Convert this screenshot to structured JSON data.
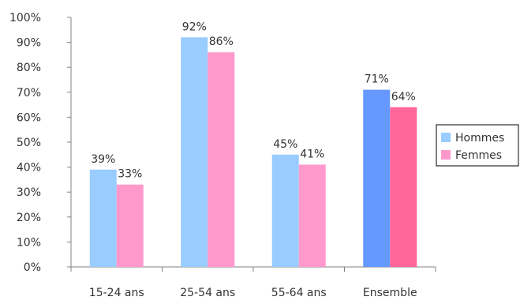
{
  "chart_data": {
    "type": "bar",
    "categories": [
      "15-24 ans",
      "25-54 ans",
      "55-64 ans",
      "Ensemble"
    ],
    "series": [
      {
        "name": "Hommes",
        "values": [
          39,
          92,
          45,
          71
        ],
        "labels": [
          "39%",
          "92%",
          "45%",
          "71%"
        ]
      },
      {
        "name": "Femmes",
        "values": [
          33,
          86,
          41,
          64
        ],
        "labels": [
          "33%",
          "86%",
          "41%",
          "64%"
        ]
      }
    ],
    "title": "",
    "xlabel": "",
    "ylabel": "",
    "ylim": [
      0,
      100
    ],
    "yticks": [
      "0%",
      "10%",
      "20%",
      "30%",
      "40%",
      "50%",
      "60%",
      "70%",
      "80%",
      "90%",
      "100%"
    ],
    "grid": false,
    "legend_position": "right",
    "colors": {
      "series": [
        "#99ccff",
        "#ff99cc"
      ],
      "highlight_category": "Ensemble",
      "highlight": [
        "#6699ff",
        "#ff6699"
      ],
      "axis": "#808080"
    }
  }
}
